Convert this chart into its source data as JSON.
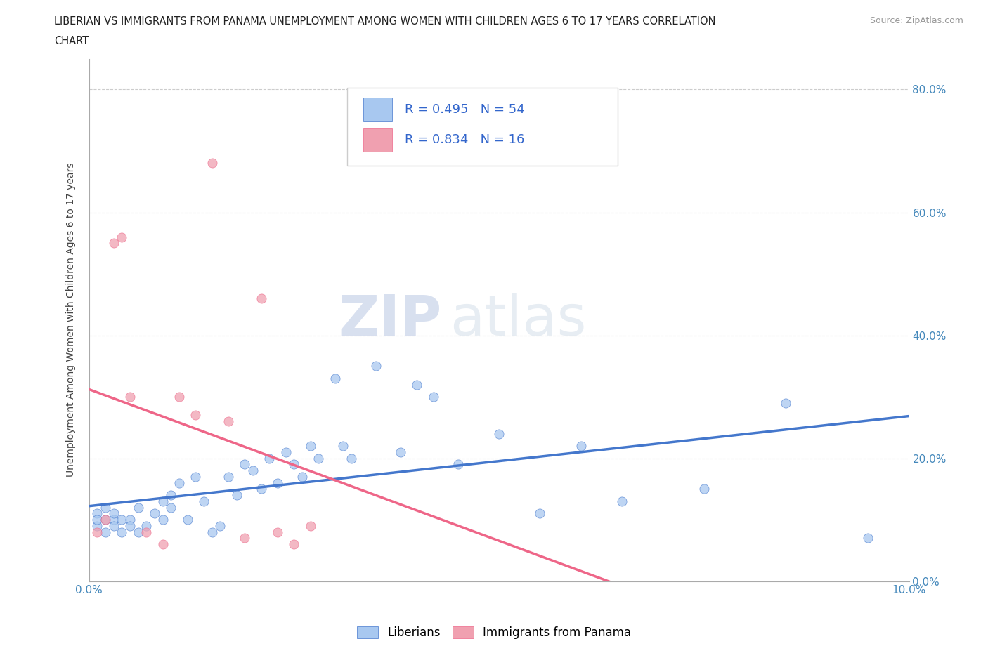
{
  "title_line1": "LIBERIAN VS IMMIGRANTS FROM PANAMA UNEMPLOYMENT AMONG WOMEN WITH CHILDREN AGES 6 TO 17 YEARS CORRELATION",
  "title_line2": "CHART",
  "source": "Source: ZipAtlas.com",
  "ylabel": "Unemployment Among Women with Children Ages 6 to 17 years",
  "xmin": 0.0,
  "xmax": 0.1,
  "ymin": 0.0,
  "ymax": 0.85,
  "yticks": [
    0.0,
    0.2,
    0.4,
    0.6,
    0.8
  ],
  "ytick_labels": [
    "0.0%",
    "20.0%",
    "40.0%",
    "60.0%",
    "80.0%"
  ],
  "xticks": [
    0.0,
    0.02,
    0.04,
    0.06,
    0.08,
    0.1
  ],
  "xtick_labels": [
    "0.0%",
    "",
    "",
    "",
    "",
    "10.0%"
  ],
  "liberian_color": "#A8C8F0",
  "panama_color": "#F0A0B0",
  "liberian_line_color": "#4477CC",
  "panama_line_color": "#EE6688",
  "R_liberian": 0.495,
  "N_liberian": 54,
  "R_panama": 0.834,
  "N_panama": 16,
  "watermark_zip": "ZIP",
  "watermark_atlas": "atlas",
  "liberian_x": [
    0.001,
    0.001,
    0.001,
    0.002,
    0.002,
    0.002,
    0.003,
    0.003,
    0.003,
    0.004,
    0.004,
    0.005,
    0.005,
    0.006,
    0.006,
    0.007,
    0.008,
    0.009,
    0.009,
    0.01,
    0.01,
    0.011,
    0.012,
    0.013,
    0.014,
    0.015,
    0.016,
    0.017,
    0.018,
    0.019,
    0.02,
    0.021,
    0.022,
    0.023,
    0.024,
    0.025,
    0.026,
    0.027,
    0.028,
    0.03,
    0.031,
    0.032,
    0.035,
    0.038,
    0.04,
    0.042,
    0.045,
    0.05,
    0.055,
    0.06,
    0.065,
    0.075,
    0.085,
    0.095
  ],
  "liberian_y": [
    0.09,
    0.11,
    0.1,
    0.1,
    0.12,
    0.08,
    0.1,
    0.09,
    0.11,
    0.08,
    0.1,
    0.1,
    0.09,
    0.12,
    0.08,
    0.09,
    0.11,
    0.1,
    0.13,
    0.12,
    0.14,
    0.16,
    0.1,
    0.17,
    0.13,
    0.08,
    0.09,
    0.17,
    0.14,
    0.19,
    0.18,
    0.15,
    0.2,
    0.16,
    0.21,
    0.19,
    0.17,
    0.22,
    0.2,
    0.33,
    0.22,
    0.2,
    0.35,
    0.21,
    0.32,
    0.3,
    0.19,
    0.24,
    0.11,
    0.22,
    0.13,
    0.15,
    0.29,
    0.07
  ],
  "panama_x": [
    0.001,
    0.002,
    0.003,
    0.004,
    0.005,
    0.007,
    0.009,
    0.011,
    0.013,
    0.015,
    0.017,
    0.019,
    0.021,
    0.023,
    0.025,
    0.027
  ],
  "panama_y": [
    0.08,
    0.1,
    0.55,
    0.56,
    0.3,
    0.08,
    0.06,
    0.3,
    0.27,
    0.68,
    0.26,
    0.07,
    0.46,
    0.08,
    0.06,
    0.09
  ]
}
